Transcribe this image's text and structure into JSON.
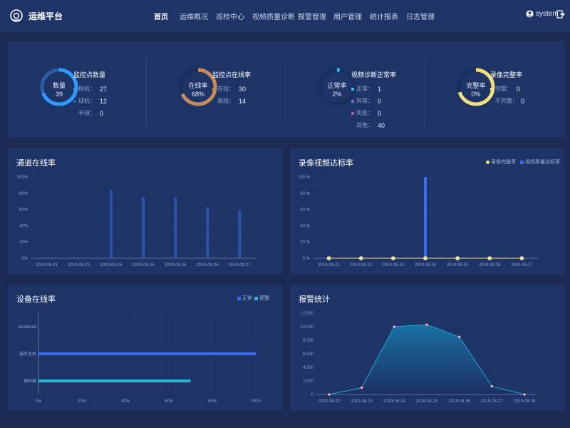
{
  "header": {
    "logo_text": "运维平台",
    "nav": [
      "首页",
      "运维概况",
      "巡检中心",
      "视频质量诊断",
      "报警管理",
      "用户管理",
      "统计报表",
      "日志管理"
    ],
    "active_index": 0,
    "user": "system"
  },
  "stats": {
    "monitor": {
      "title": "监控点数量",
      "ring_label": "数量",
      "ring_value": "39",
      "rows": [
        {
          "label": "枪机：",
          "value": "27",
          "color": "#2f9bff"
        },
        {
          "label": "球机：",
          "value": "12",
          "color": "#2a5fa8"
        },
        {
          "label": "半球：",
          "value": "0",
          "color": "#1b3766"
        }
      ]
    },
    "online": {
      "title": "监控点在线率",
      "ring_label": "在线率",
      "ring_value": "68%",
      "rows": [
        {
          "label": "在线：",
          "value": "30",
          "color": "#c98a5a"
        },
        {
          "label": "离线：",
          "value": "14",
          "color": "#1b3766"
        }
      ]
    },
    "diagnosis": {
      "title": "视频诊断正常率",
      "ring_label": "正常率",
      "ring_value": "2%",
      "rows": [
        {
          "label": "正常：",
          "value": "1",
          "color": "#35c3ff"
        },
        {
          "label": "异常：",
          "value": "0",
          "color": "#7a6fd0"
        },
        {
          "label": "失败：",
          "value": "0",
          "color": "#b26a8a"
        },
        {
          "label": "其他：",
          "value": "40",
          "color": "#1b3766"
        }
      ]
    },
    "record": {
      "title": "录像完整率",
      "ring_label": "完整率",
      "ring_value": "0%",
      "rows": [
        {
          "label": "完整：",
          "value": "0",
          "color": "#f3e07a"
        },
        {
          "label": "不完整：",
          "value": "0",
          "color": "#1b3766"
        }
      ]
    }
  },
  "chart_data": [
    {
      "id": "channel_online",
      "type": "bar",
      "title": "通道在线率",
      "categories": [
        "2019-08-21",
        "2019-08-22",
        "2019-08-23",
        "2019-08-24",
        "2019-08-25",
        "2019-08-26",
        "2019-08-27"
      ],
      "values": [
        0,
        0,
        84,
        75,
        75,
        63,
        59
      ],
      "ylabels": [
        "0%",
        "20%",
        "40%",
        "60%",
        "80%",
        "100%"
      ],
      "ylim": [
        0,
        100
      ],
      "color": "#2d52a8"
    },
    {
      "id": "record_rate",
      "type": "bar+line",
      "title": "录像视频达标率",
      "categories": [
        "2019-08-21",
        "2019-08-22",
        "2019-08-23",
        "2019-08-24",
        "2019-08-25",
        "2019-08-26",
        "2019-08-27"
      ],
      "series": [
        {
          "name": "录像完整率",
          "type": "line",
          "values": [
            0,
            0,
            0,
            0,
            0,
            0,
            0
          ],
          "color": "#f2e27a"
        },
        {
          "name": "视频质量达标率",
          "type": "bar",
          "values": [
            0,
            0,
            0,
            100,
            0,
            0,
            0
          ],
          "color": "#3a6cf2"
        }
      ],
      "ylabels": [
        "0 %",
        "20 %",
        "40 %",
        "60 %",
        "80 %",
        "100 %"
      ],
      "ylim": [
        0,
        100
      ]
    },
    {
      "id": "device_online",
      "type": "hbar",
      "title": "设备在线率",
      "categories": [
        "编码器",
        "服务主机",
        "undefined"
      ],
      "series": [
        {
          "name": "正常",
          "values": [
            70,
            100,
            0
          ],
          "color": "#3a6cf2"
        },
        {
          "name": "预警",
          "values": [
            70,
            0,
            0
          ],
          "color": "#2bb6d6"
        }
      ],
      "xlabels": [
        "0%",
        "20%",
        "40%",
        "60%",
        "80%",
        "100%"
      ],
      "xlim": [
        0,
        100
      ]
    },
    {
      "id": "alarm_stats",
      "type": "area",
      "title": "报警统计",
      "categories": [
        "2019-08-22",
        "2019-08-23",
        "2019-08-24",
        "2019-08-25",
        "2019-08-26",
        "2019-08-27",
        "2019-08-28"
      ],
      "values": [
        0,
        1000,
        10000,
        10300,
        8500,
        1200,
        0
      ],
      "ylabels": [
        "0",
        "2,000",
        "4,000",
        "6,000",
        "8,000",
        "10,000",
        "12,000"
      ],
      "ylim": [
        0,
        12000
      ],
      "color": "#1fa9d6"
    }
  ]
}
